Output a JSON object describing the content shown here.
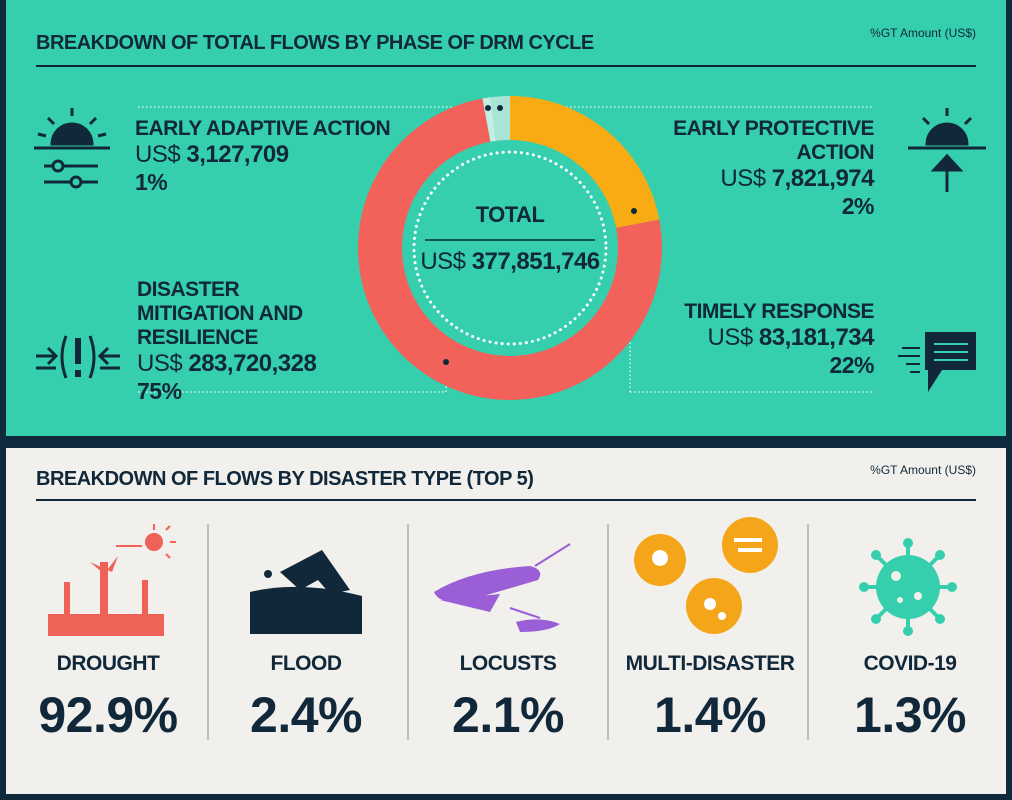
{
  "top": {
    "title": "BREAKDOWN OF TOTAL FLOWS BY PHASE OF DRM CYCLE",
    "unit_note": "%GT Amount (US$)",
    "total": {
      "label": "TOTAL",
      "currency": "US$",
      "amount": "377,851,746"
    },
    "phases": [
      {
        "name": "EARLY ADAPTIVE ACTION",
        "currency": "US$",
        "amount": 3127709,
        "amount_label": "3,127,709",
        "share": "1%",
        "color": "#c4eee4"
      },
      {
        "name": "EARLY PROTECTIVE ACTION",
        "currency": "US$",
        "amount": 7821974,
        "amount_label": "7,821,974",
        "share": "2%",
        "color": "#a9e4d6"
      },
      {
        "name": "DISASTER MITIGATION AND RESILIENCE",
        "currency": "US$",
        "amount": 283720328,
        "amount_label": "283,720,328",
        "share": "75%",
        "color": "#f2625a"
      },
      {
        "name": "TIMELY RESPONSE",
        "currency": "US$",
        "amount": 83181734,
        "amount_label": "83,181,734",
        "share": "22%",
        "color": "#f8ab13"
      }
    ]
  },
  "bottom": {
    "title": "BREAKDOWN OF FLOWS BY DISASTER TYPE (TOP 5)",
    "unit_note": "%GT Amount (US$)",
    "types": [
      {
        "name": "DROUGHT",
        "share": "92.9%"
      },
      {
        "name": "FLOOD",
        "share": "2.4%"
      },
      {
        "name": "LOCUSTS",
        "share": "2.1%"
      },
      {
        "name": "MULTI-DISASTER",
        "share": "1.4%"
      },
      {
        "name": "COVID-19",
        "share": "1.3%"
      }
    ]
  }
}
